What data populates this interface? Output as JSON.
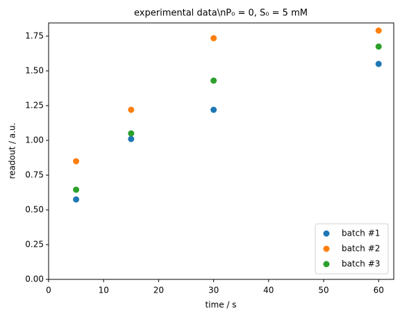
{
  "chart_data": {
    "type": "scatter",
    "title": "experimental data\\nP₀ = 0, S₀ = 5 mM",
    "xlabel": "time / s",
    "ylabel": "readout / a.u.",
    "series": [
      {
        "name": "batch #1",
        "color": "#1f77b4",
        "x": [
          5,
          15,
          30,
          60
        ],
        "values": [
          0.575,
          1.01,
          1.22,
          1.55
        ]
      },
      {
        "name": "batch #2",
        "color": "#ff7f0e",
        "x": [
          5,
          15,
          30,
          60
        ],
        "values": [
          0.85,
          1.22,
          1.735,
          1.79
        ]
      },
      {
        "name": "batch #3",
        "color": "#2ca02c",
        "x": [
          5,
          15,
          30,
          60
        ],
        "values": [
          0.645,
          1.05,
          1.43,
          1.675
        ]
      }
    ],
    "xlim": [
      0,
      62.75
    ],
    "ylim": [
      0,
      1.845
    ],
    "xticks": [
      0,
      10,
      20,
      30,
      40,
      50,
      60
    ],
    "yticks": [
      {
        "value": 0,
        "label": "0.00"
      },
      {
        "value": 0.25,
        "label": "0.25"
      },
      {
        "value": 0.5,
        "label": "0.50"
      },
      {
        "value": 0.75,
        "label": "0.75"
      },
      {
        "value": 1,
        "label": "1.00"
      },
      {
        "value": 1.25,
        "label": "1.25"
      },
      {
        "value": 1.5,
        "label": "1.50"
      },
      {
        "value": 1.75,
        "label": "1.75"
      }
    ],
    "legend": "lower right"
  }
}
